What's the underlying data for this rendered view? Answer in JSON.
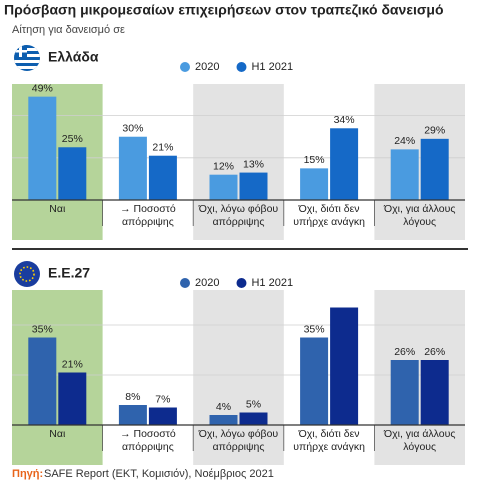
{
  "title": "Πρόσβαση μικρομεσαίων επιχειρήσεων στον τραπεζικό δανεισμό",
  "subtitle": "Αίτηση για δανεισμό σε",
  "source_label": "Πηγή:",
  "source": "SAFE Report (ΕΚΤ, Κομισιόν), Νοέμβριος 2021",
  "chart_data": [
    {
      "type": "bar",
      "title": "Ελλάδα",
      "categories": [
        "Ναι",
        "→ Ποσοστό απόρριψης",
        "Όχι, λόγω φόβου απόρριψης",
        "Όχι, διότι δεν υπήρχε ανάγκη",
        "Όχι, για άλλους λόγους"
      ],
      "series": [
        {
          "name": "2020",
          "color": "#4a9be0",
          "values": [
            49,
            30,
            12,
            15,
            24
          ],
          "value_labels": [
            "49%",
            "30%",
            "12%",
            "15%",
            "24%"
          ]
        },
        {
          "name": "H1 2021",
          "color": "#1569c7",
          "values": [
            25,
            21,
            13,
            34,
            29
          ],
          "value_labels": [
            "25%",
            "21%",
            "13%",
            "34%",
            "29%"
          ]
        }
      ],
      "ylim": [
        0,
        55
      ],
      "yticks": [
        0,
        20,
        40
      ],
      "grid": true
    },
    {
      "type": "bar",
      "title": "Ε.Ε.27",
      "categories": [
        "Ναι",
        "→ Ποσοστό απόρριψης",
        "Όχι, λόγω φόβου απόρριψης",
        "Όχι, διότι δεν υπήρχε ανάγκη",
        "Όχι, για άλλους λόγους"
      ],
      "series": [
        {
          "name": "2020",
          "color": "#2f63ad",
          "values": [
            35,
            8,
            4,
            35,
            26
          ],
          "value_labels": [
            "35%",
            "8%",
            "4%",
            "35%",
            "26%"
          ]
        },
        {
          "name": "H1 2021",
          "color": "#0d2b8e",
          "values": [
            21,
            7,
            5,
            47,
            26
          ],
          "value_labels": [
            "21%",
            "7%",
            "5%",
            null,
            "26%"
          ]
        }
      ],
      "ylim": [
        0,
        54
      ],
      "yticks": [
        0,
        20,
        40
      ],
      "grid": true
    }
  ]
}
